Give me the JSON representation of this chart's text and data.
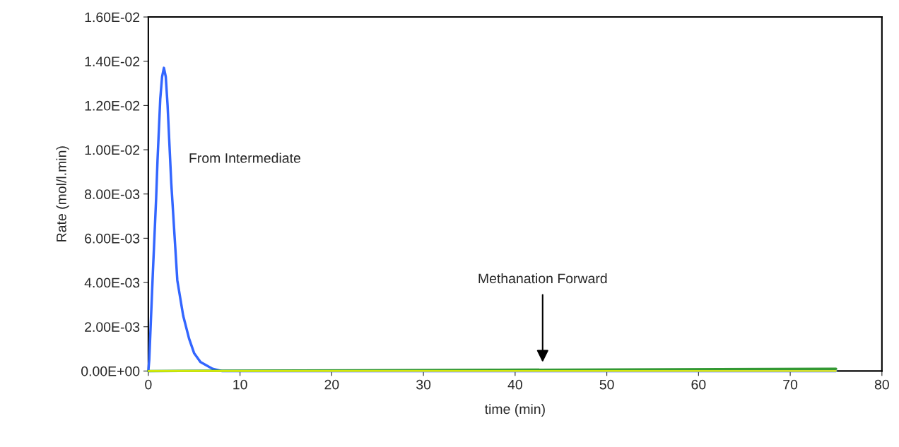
{
  "chart_data": {
    "type": "line",
    "xlabel": "time (min)",
    "ylabel": "Rate (mol/l.min)",
    "xlim": [
      0,
      80
    ],
    "xticks": [
      0,
      10,
      20,
      30,
      40,
      50,
      60,
      70,
      80
    ],
    "ylim": [
      0,
      0.016
    ],
    "yticks": [
      {
        "value": 0,
        "label": "0.00E+00"
      },
      {
        "value": 0.002,
        "label": "2.00E-03"
      },
      {
        "value": 0.004,
        "label": "4.00E-03"
      },
      {
        "value": 0.006,
        "label": "6.00E-03"
      },
      {
        "value": 0.008,
        "label": "8.00E-03"
      },
      {
        "value": 0.01,
        "label": "1.00E-02"
      },
      {
        "value": 0.012,
        "label": "1.20E-02"
      },
      {
        "value": 0.014,
        "label": "1.40E-02"
      },
      {
        "value": 0.016,
        "label": "1.60E-02"
      }
    ],
    "grid": false,
    "legend": false,
    "marker": "none",
    "line_style": "solid",
    "series": [
      {
        "color": "#3366ff",
        "x": [
          0,
          0.1,
          0.5,
          0.85,
          1.0,
          1.3,
          1.5,
          1.7,
          1.9,
          2.1,
          2.5,
          3.16,
          3.8,
          4.44,
          5.0,
          5.7,
          7,
          8,
          10,
          75
        ],
        "values": [
          0,
          0.0005,
          0.0045,
          0.0078,
          0.0095,
          0.0123,
          0.0133,
          0.0137,
          0.0133,
          0.012,
          0.0085,
          0.0041,
          0.0025,
          0.00147,
          0.0008,
          0.0004,
          0.0001,
          0,
          0,
          0
        ]
      },
      {
        "color": "#339933",
        "x": [
          0,
          75
        ],
        "values": [
          0.0,
          0.0001
        ]
      },
      {
        "color": "#ffff00",
        "x": [
          0,
          75
        ],
        "values": [
          0,
          0
        ]
      }
    ],
    "annotations": [
      "From Intermediate",
      "Methanation Forward"
    ]
  }
}
